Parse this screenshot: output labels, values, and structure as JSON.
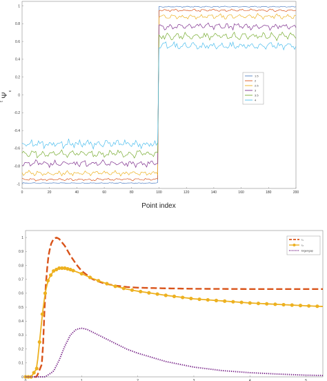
{
  "chart_data": [
    {
      "type": "line",
      "xlabel": "Point index",
      "ylabel": "Ψ",
      "ylabel_superscript": "t",
      "ylabel_subscript": "c",
      "xlim": [
        0,
        200
      ],
      "ylim": [
        -1.05,
        1.05
      ],
      "xticks": [
        0,
        20,
        40,
        60,
        80,
        100,
        120,
        140,
        160,
        180,
        200
      ],
      "yticks": [
        -1,
        -0.8,
        -0.6,
        -0.4,
        -0.2,
        0,
        0.2,
        0.4,
        0.6,
        0.8,
        1
      ],
      "ytick_labels": [
        "-1",
        "-0.8",
        "-0.6",
        "-0.4",
        "-0.2",
        "0",
        "0.2",
        "0.4",
        "0.6",
        "0.8",
        "1"
      ],
      "switch_index": 100,
      "legend_position": "right",
      "grid": false,
      "series": [
        {
          "name": "1.5",
          "color": "#4f7fc4",
          "level": 0.99,
          "noise": 0.006
        },
        {
          "name": "2",
          "color": "#d95319",
          "level": 0.95,
          "noise": 0.015
        },
        {
          "name": "2.5",
          "color": "#edb120",
          "level": 0.88,
          "noise": 0.03
        },
        {
          "name": "3",
          "color": "#7e2f8e",
          "level": 0.77,
          "noise": 0.04
        },
        {
          "name": "3.5",
          "color": "#77ac30",
          "level": 0.66,
          "noise": 0.045
        },
        {
          "name": "4",
          "color": "#4dbeee",
          "level": 0.55,
          "noise": 0.05
        }
      ]
    },
    {
      "type": "line",
      "xlim": [
        0,
        5.3
      ],
      "ylim": [
        0,
        1.05
      ],
      "xticks": [
        0,
        1,
        2,
        3,
        4,
        5
      ],
      "yticks": [
        0,
        0.1,
        0.2,
        0.3,
        0.4,
        0.5,
        0.6,
        0.7,
        0.8,
        0.9,
        1
      ],
      "ytick_labels": [
        "0",
        "0.1",
        "0.2",
        "0.3",
        "0.4",
        "0.5",
        "0.6",
        "0.7",
        "0.8",
        "0.9",
        "1"
      ],
      "legend_position": "top-right",
      "grid": false,
      "series": [
        {
          "name": "r₁",
          "color": "#d95319",
          "style": "dashed",
          "x": [
            0,
            0.2,
            0.3,
            0.35,
            0.4,
            0.45,
            0.5,
            0.55,
            0.6,
            0.7,
            0.8,
            0.9,
            1.0,
            1.2,
            1.4,
            1.6,
            1.8,
            2.0,
            2.5,
            3.0,
            3.5,
            4.0,
            4.5,
            5.0,
            5.3
          ],
          "y": [
            0,
            0,
            0.1,
            0.6,
            0.85,
            0.95,
            0.99,
            1.0,
            0.99,
            0.94,
            0.87,
            0.81,
            0.76,
            0.7,
            0.67,
            0.655,
            0.645,
            0.64,
            0.635,
            0.632,
            0.631,
            0.63,
            0.63,
            0.63,
            0.63
          ]
        },
        {
          "name": "r₂",
          "color": "#edb120",
          "style": "solid-markers",
          "x": [
            0,
            0.1,
            0.2,
            0.25,
            0.3,
            0.35,
            0.4,
            0.45,
            0.5,
            0.55,
            0.6,
            0.65,
            0.7,
            0.8,
            0.9,
            1.0,
            1.2,
            1.4,
            1.6,
            1.8,
            2.0,
            2.5,
            3.0,
            3.5,
            4.0,
            4.5,
            5.0,
            5.3
          ],
          "y": [
            0,
            0,
            0.06,
            0.25,
            0.45,
            0.6,
            0.69,
            0.73,
            0.76,
            0.77,
            0.78,
            0.78,
            0.78,
            0.77,
            0.755,
            0.74,
            0.705,
            0.675,
            0.65,
            0.63,
            0.615,
            0.585,
            0.56,
            0.545,
            0.53,
            0.52,
            0.51,
            0.505
          ]
        },
        {
          "name": "Eigengap",
          "color": "#7e2f8e",
          "style": "dotted",
          "x": [
            0,
            0.35,
            0.5,
            0.6,
            0.7,
            0.8,
            0.9,
            1.0,
            1.1,
            1.2,
            1.4,
            1.6,
            1.8,
            2.0,
            2.5,
            3.0,
            3.5,
            4.0,
            4.5,
            5.0,
            5.3
          ],
          "y": [
            0,
            0,
            0.04,
            0.12,
            0.22,
            0.3,
            0.34,
            0.35,
            0.34,
            0.32,
            0.28,
            0.24,
            0.2,
            0.17,
            0.11,
            0.07,
            0.045,
            0.03,
            0.02,
            0.012,
            0.01
          ]
        }
      ]
    }
  ]
}
